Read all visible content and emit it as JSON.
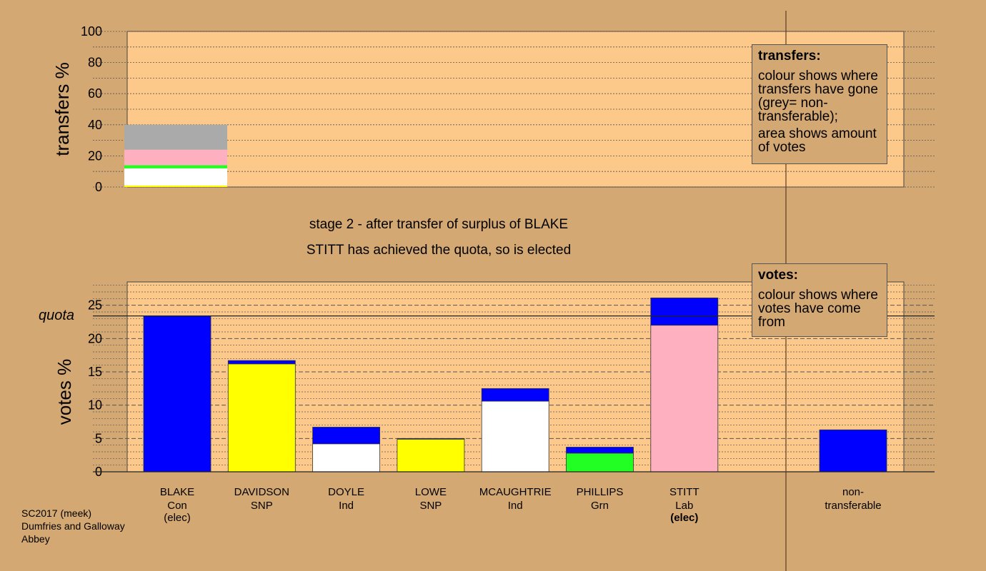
{
  "colors": {
    "background": "#d4a872",
    "plot_bg": "#fdc98a",
    "Con": "#0000ff",
    "SNP": "#ffff00",
    "Ind": "#ffffff",
    "Grn": "#22ff22",
    "Lab": "#ffb0c0",
    "nontransferable": "#aaaaaa"
  },
  "header": {
    "stage_line": "stage 2 - after transfer of surplus of BLAKE",
    "status_line": "STITT has achieved the quota, so is elected"
  },
  "legends": {
    "transfers": {
      "title": "transfers:",
      "line1": "colour shows where transfers have gone (grey= non-transferable);",
      "line2": "area shows amount of votes"
    },
    "votes": {
      "title": "votes:",
      "line1": "colour shows where votes have come from"
    }
  },
  "footer": {
    "line1": "SC2017 (meek)",
    "line2": "Dumfries and Galloway",
    "line3": "Abbey"
  },
  "chart_data": [
    {
      "type": "bar",
      "title": "",
      "ylabel": "transfers %",
      "ylim": [
        0,
        100
      ],
      "yticks": [
        "0",
        "20",
        "40",
        "60",
        "80",
        "100"
      ],
      "stacked": true,
      "bar": {
        "width_votes_pct": 16.0,
        "segments": [
          {
            "party": "SNP",
            "value": 1.0
          },
          {
            "party": "Ind",
            "value": 11.0
          },
          {
            "party": "Grn",
            "value": 2.0
          },
          {
            "party": "Lab",
            "value": 10.0
          },
          {
            "party": "nontransferable",
            "value": 16.0
          }
        ]
      }
    },
    {
      "type": "bar",
      "title": "",
      "ylabel": "votes %",
      "ylim": [
        0,
        28.5
      ],
      "yticks": [
        "0",
        "5",
        "10",
        "15",
        "20",
        "25"
      ],
      "quota": 23.4,
      "quota_label": "quota",
      "stacked": true,
      "categories": [
        {
          "name": "BLAKE",
          "party": "Con",
          "note": "(elec)",
          "note_bold": false,
          "segments": [
            {
              "party": "Con",
              "value": 23.4
            }
          ]
        },
        {
          "name": "DAVIDSON",
          "party": "SNP",
          "note": "",
          "note_bold": false,
          "segments": [
            {
              "party": "SNP",
              "value": 16.2
            },
            {
              "party": "Con",
              "value": 0.5
            }
          ]
        },
        {
          "name": "DOYLE",
          "party": "Ind",
          "note": "",
          "note_bold": false,
          "segments": [
            {
              "party": "Ind",
              "value": 4.2
            },
            {
              "party": "Con",
              "value": 2.5
            }
          ]
        },
        {
          "name": "LOWE",
          "party": "SNP",
          "note": "",
          "note_bold": false,
          "segments": [
            {
              "party": "SNP",
              "value": 4.9
            },
            {
              "party": "Con",
              "value": 0.1
            }
          ]
        },
        {
          "name": "MCAUGHTRIE",
          "party": "Ind",
          "note": "",
          "note_bold": false,
          "segments": [
            {
              "party": "Ind",
              "value": 10.6
            },
            {
              "party": "Con",
              "value": 1.9
            }
          ]
        },
        {
          "name": "PHILLIPS",
          "party": "Grn",
          "note": "",
          "note_bold": false,
          "segments": [
            {
              "party": "Grn",
              "value": 2.8
            },
            {
              "party": "Con",
              "value": 0.9
            }
          ]
        },
        {
          "name": "STITT",
          "party": "Lab",
          "note": "(elec)",
          "note_bold": true,
          "segments": [
            {
              "party": "Lab",
              "value": 22.0
            },
            {
              "party": "Con",
              "value": 4.1
            }
          ]
        }
      ],
      "nontransferable": {
        "label_line1": "non-",
        "label_line2": "transferable",
        "segments": [
          {
            "party": "Con",
            "value": 6.3
          }
        ]
      }
    }
  ]
}
